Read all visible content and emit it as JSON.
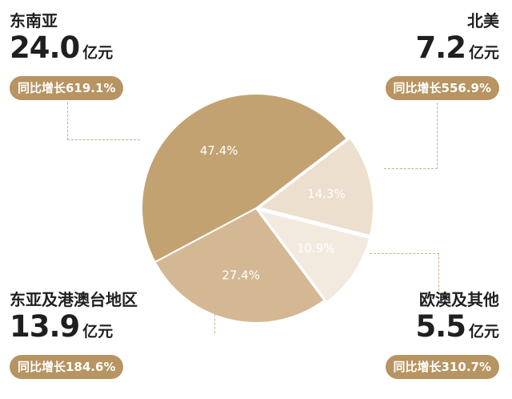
{
  "chart_data": {
    "type": "pie",
    "slices": [
      {
        "name": "东南亚",
        "amount": "24.0",
        "unit": "亿元",
        "growth": "同比增长619.1%",
        "percent": 47.4,
        "percent_label": "47.4%",
        "color": "#c2a271"
      },
      {
        "name": "北美",
        "amount": "7.2",
        "unit": "亿元",
        "growth": "同比增长556.9%",
        "percent": 14.3,
        "percent_label": "14.3%",
        "color": "#ecdfcd"
      },
      {
        "name": "欧澳及其他",
        "amount": "5.5",
        "unit": "亿元",
        "growth": "同比增长310.7%",
        "percent": 10.9,
        "percent_label": "10.9%",
        "color": "#f3eadf"
      },
      {
        "name": "东亚及港澳台地区",
        "amount": "13.9",
        "unit": "亿元",
        "growth": "同比增长184.6%",
        "percent": 27.4,
        "percent_label": "27.4%",
        "color": "#d4b894"
      }
    ]
  }
}
